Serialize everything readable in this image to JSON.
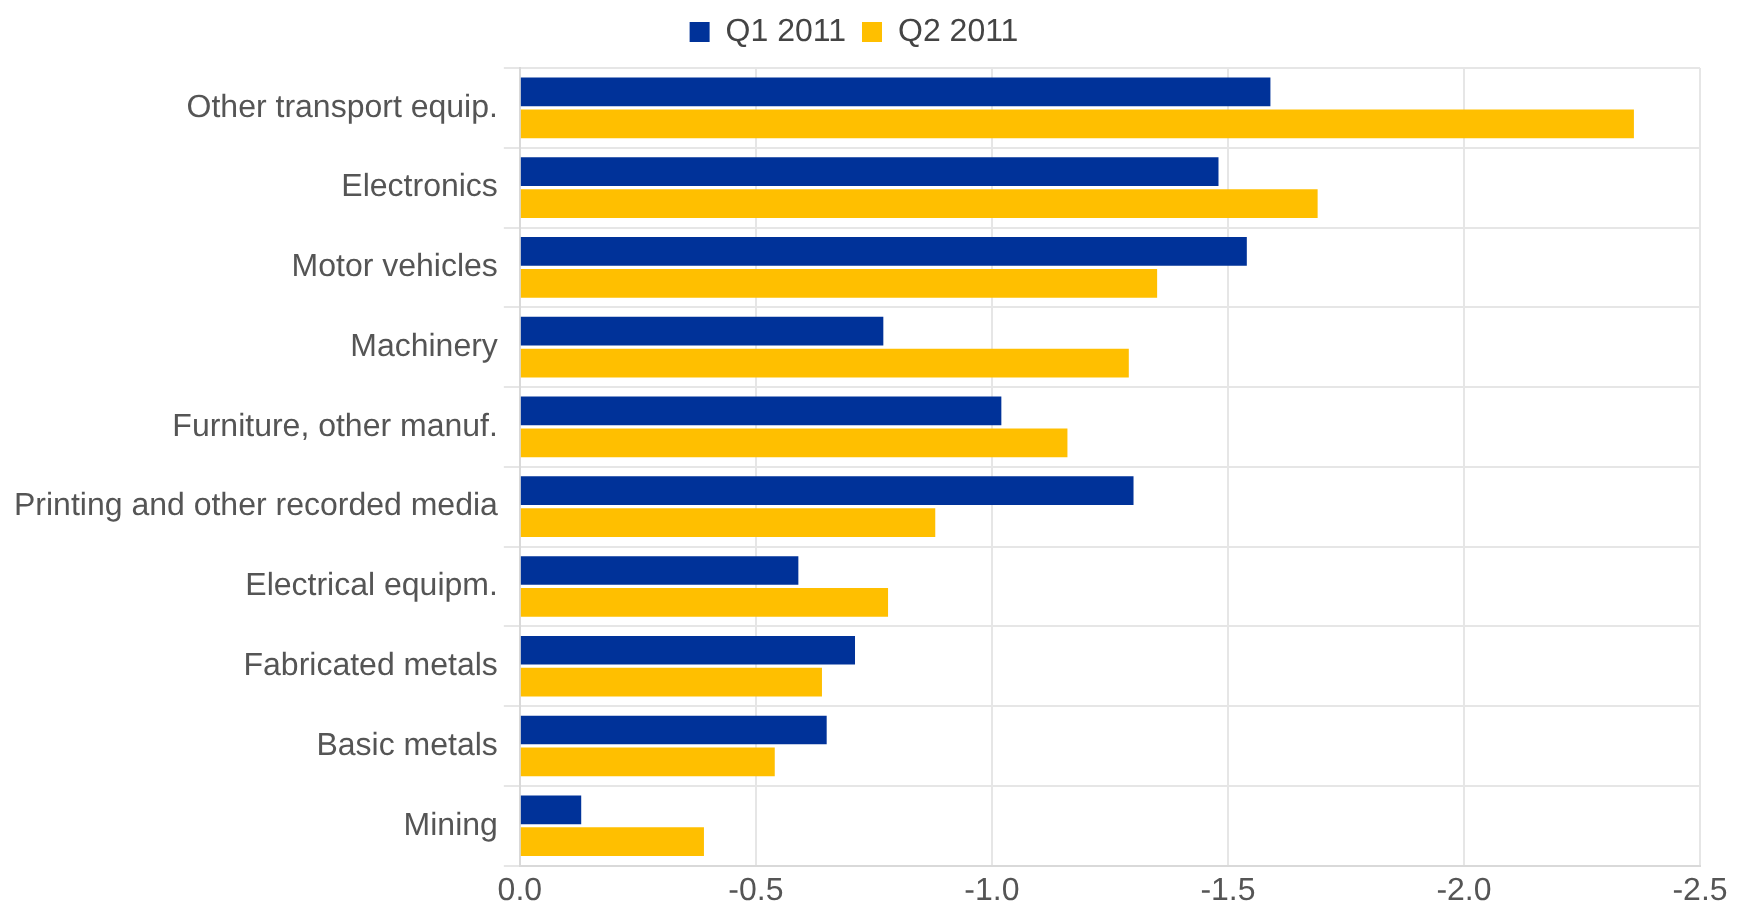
{
  "chart_data": {
    "type": "bar",
    "orientation": "horizontal",
    "categories": [
      "Other transport equip.",
      "Electronics",
      "Motor vehicles",
      "Machinery",
      "Furniture, other manuf.",
      "Printing and other recorded media",
      "Electrical equipm.",
      "Fabricated metals",
      "Basic metals",
      "Mining"
    ],
    "series": [
      {
        "name": "Q1 2011",
        "color": "#003299",
        "values": [
          -1.59,
          -1.48,
          -1.54,
          -0.77,
          -1.02,
          -1.3,
          -0.59,
          -0.71,
          -0.65,
          -0.13
        ]
      },
      {
        "name": "Q2 2011",
        "color": "#ffbf00",
        "values": [
          -2.36,
          -1.69,
          -1.35,
          -1.29,
          -1.16,
          -0.88,
          -0.78,
          -0.64,
          -0.54,
          -0.39
        ]
      }
    ],
    "xlim": [
      0,
      -2.5
    ],
    "xticks": [
      {
        "value": 0,
        "label": "0.0"
      },
      -0.5,
      {
        "value": -1,
        "label": "-1.0"
      },
      -1.5,
      {
        "value": -2,
        "label": "-2.0"
      },
      -2.5
    ],
    "grid": true,
    "legend": "top"
  }
}
